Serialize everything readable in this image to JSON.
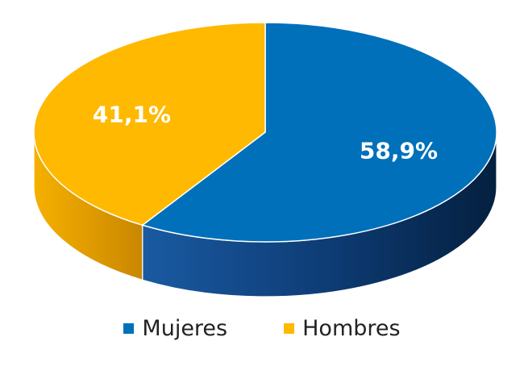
{
  "chart_data": {
    "type": "pie",
    "style": "3d",
    "slices": [
      {
        "label": "Mujeres",
        "value": 58.9,
        "value_label": "58,9%",
        "color": "#0070BA",
        "side_color": "#0A3466"
      },
      {
        "label": "Hombres",
        "value": 41.1,
        "value_label": "41,1%",
        "color": "#FFB900",
        "side_color": "#D08B00"
      }
    ],
    "legend_position": "bottom"
  }
}
